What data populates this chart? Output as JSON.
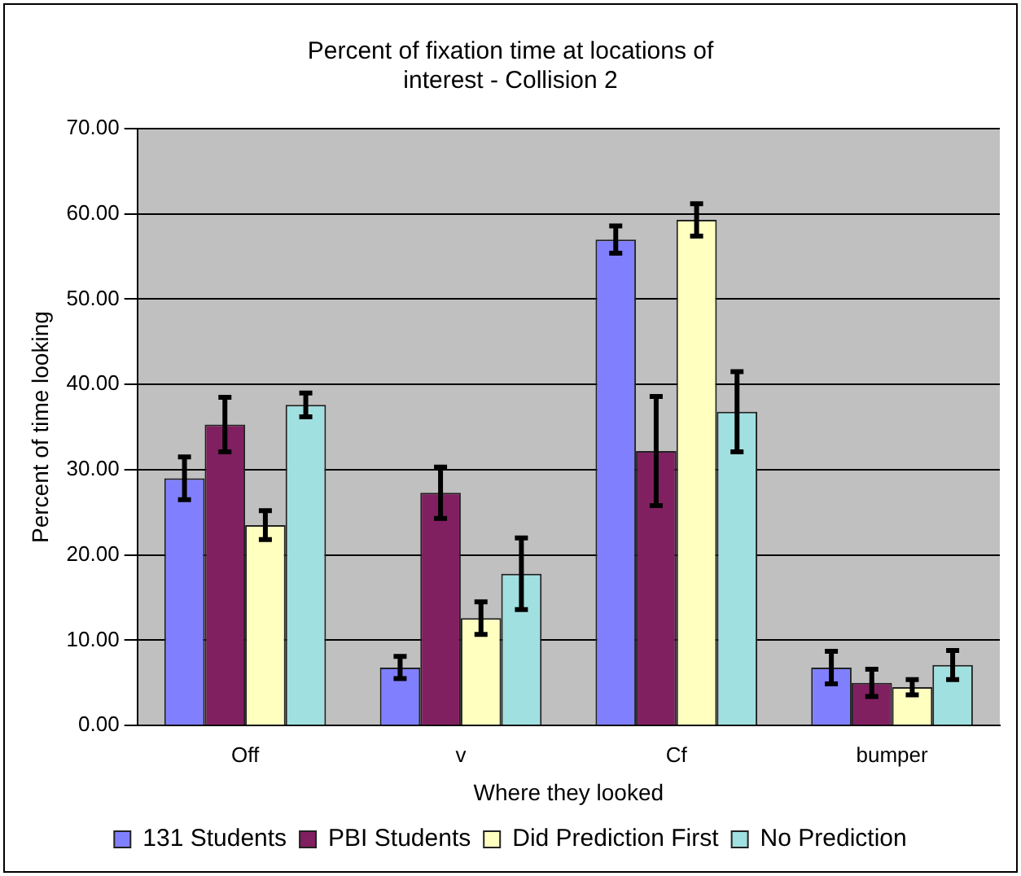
{
  "chart_data": {
    "type": "bar",
    "title": [
      "Percent of fixation time at locations of",
      "interest - Collision 2"
    ],
    "xlabel": "Where they looked",
    "ylabel": "Percent of time looking",
    "categories": [
      "Off",
      "v",
      "Cf",
      "bumper"
    ],
    "series": [
      {
        "name": "131 Students",
        "color": "#8080ff",
        "values": [
          29.0,
          6.8,
          57.0,
          6.8
        ],
        "errors": [
          2.5,
          1.3,
          1.6,
          1.9
        ]
      },
      {
        "name": "PBI Students",
        "color": "#802060",
        "values": [
          35.3,
          27.3,
          32.2,
          5.0
        ],
        "errors": [
          3.2,
          3.0,
          6.4,
          1.6
        ]
      },
      {
        "name": "Did Prediction First",
        "color": "#ffffc0",
        "values": [
          23.5,
          12.6,
          59.3,
          4.5
        ],
        "errors": [
          1.7,
          1.9,
          1.9,
          0.9
        ]
      },
      {
        "name": "No Prediction",
        "color": "#a0e0e0",
        "values": [
          37.6,
          17.8,
          36.8,
          7.1
        ],
        "errors": [
          1.4,
          4.2,
          4.7,
          1.7
        ]
      }
    ],
    "ylim": [
      0,
      70
    ],
    "yticks": [
      {
        "value": 0,
        "label": "0.00"
      },
      {
        "value": 10,
        "label": "10.00"
      },
      {
        "value": 20,
        "label": "20.00"
      },
      {
        "value": 30,
        "label": "30.00"
      },
      {
        "value": 40,
        "label": "40.00"
      },
      {
        "value": 50,
        "label": "50.00"
      },
      {
        "value": 60,
        "label": "60.00"
      },
      {
        "value": 70,
        "label": "70.00"
      }
    ],
    "grid": "y",
    "legend": "bottom"
  }
}
